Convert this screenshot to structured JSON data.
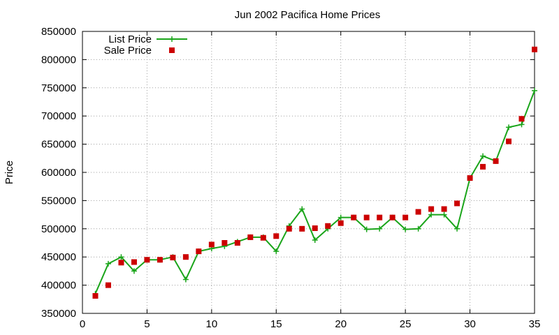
{
  "chart_data": {
    "type": "line",
    "title": "Jun 2002 Pacifica Home Prices",
    "xlabel": "",
    "ylabel": "Price",
    "xlim": [
      0,
      35
    ],
    "ylim": [
      350000,
      850000
    ],
    "x_ticks": [
      "0",
      "5",
      "10",
      "15",
      "20",
      "25",
      "30",
      "35"
    ],
    "y_ticks": [
      "350000",
      "400000",
      "450000",
      "500000",
      "550000",
      "600000",
      "650000",
      "700000",
      "750000",
      "800000",
      "850000"
    ],
    "grid": true,
    "legend_position": "top-left",
    "x": [
      1,
      2,
      3,
      4,
      5,
      6,
      7,
      8,
      9,
      10,
      11,
      12,
      13,
      14,
      15,
      16,
      17,
      18,
      19,
      20,
      21,
      22,
      23,
      24,
      25,
      26,
      27,
      28,
      29,
      30,
      31,
      32,
      33,
      34,
      35
    ],
    "series": [
      {
        "name": "List Price",
        "style": "line-with-plus-markers",
        "color": "#1aa51a",
        "values": [
          385000,
          438000,
          450000,
          425000,
          445000,
          445000,
          450000,
          410000,
          460000,
          465000,
          469000,
          477000,
          485000,
          485000,
          460000,
          505000,
          535000,
          480000,
          500000,
          520000,
          520000,
          499000,
          500000,
          520000,
          499000,
          500000,
          525000,
          525000,
          500000,
          590000,
          629000,
          620000,
          680000,
          685000,
          745000
        ]
      },
      {
        "name": "Sale Price",
        "style": "square-markers",
        "color": "#cc0000",
        "values": [
          381000,
          400000,
          440000,
          441000,
          445000,
          445000,
          449000,
          450000,
          460000,
          472000,
          475000,
          475000,
          485000,
          484000,
          487000,
          500000,
          500000,
          501000,
          505000,
          510000,
          520000,
          520000,
          520000,
          520000,
          520000,
          530000,
          535000,
          535000,
          545000,
          590000,
          610000,
          620000,
          655000,
          695000,
          818000
        ]
      }
    ]
  }
}
